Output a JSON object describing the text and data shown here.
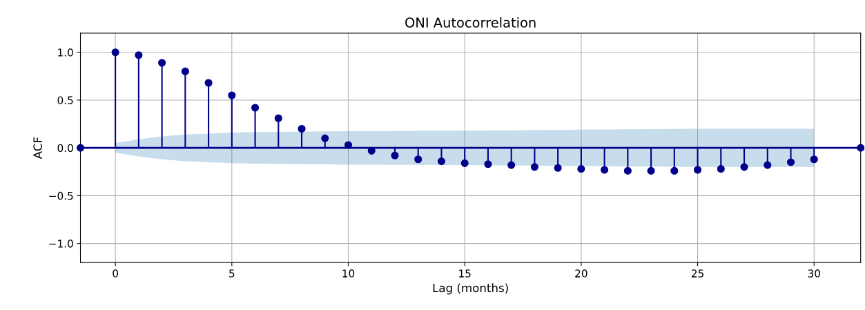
{
  "chart_data": {
    "type": "lollipop",
    "title": "ONI Autocorrelation",
    "xlabel": "Lag (months)",
    "ylabel": "ACF",
    "x": [
      0,
      1,
      2,
      3,
      4,
      5,
      6,
      7,
      8,
      9,
      10,
      11,
      12,
      13,
      14,
      15,
      16,
      17,
      18,
      19,
      20,
      21,
      22,
      23,
      24,
      25,
      26,
      27,
      28,
      29,
      30
    ],
    "series": [
      {
        "color": "#00008b",
        "marker": "circle",
        "values": [
          1.0,
          0.97,
          0.89,
          0.8,
          0.68,
          0.55,
          0.42,
          0.31,
          0.2,
          0.1,
          0.03,
          -0.03,
          -0.08,
          -0.12,
          -0.14,
          -0.16,
          -0.17,
          -0.18,
          -0.2,
          -0.21,
          -0.22,
          -0.23,
          -0.24,
          -0.24,
          -0.24,
          -0.23,
          -0.22,
          -0.2,
          -0.18,
          -0.15,
          -0.12
        ],
        "lower": [
          -0.05,
          -0.09,
          -0.12,
          -0.14,
          -0.15,
          -0.16,
          -0.165,
          -0.168,
          -0.17,
          -0.172,
          -0.175,
          -0.176,
          -0.177,
          -0.178,
          -0.179,
          -0.18,
          -0.182,
          -0.184,
          -0.186,
          -0.188,
          -0.19,
          -0.192,
          -0.194,
          -0.196,
          -0.198,
          -0.2,
          -0.2,
          -0.2,
          -0.2,
          -0.2,
          -0.2
        ],
        "upper": [
          0.05,
          0.09,
          0.12,
          0.14,
          0.15,
          0.16,
          0.165,
          0.168,
          0.17,
          0.172,
          0.175,
          0.176,
          0.177,
          0.178,
          0.179,
          0.18,
          0.182,
          0.184,
          0.186,
          0.188,
          0.19,
          0.192,
          0.194,
          0.196,
          0.198,
          0.2,
          0.2,
          0.2,
          0.2,
          0.2,
          0.2
        ]
      },
      {
        "type": "line",
        "color": "#00008b",
        "marker": "circle",
        "x": [
          -1.5,
          32
        ],
        "values": [
          0,
          0
        ]
      }
    ],
    "xlim": [
      -1.5,
      32
    ],
    "xticks": [
      0,
      5,
      10,
      15,
      20,
      25,
      30
    ],
    "ylim": [
      -1.2,
      1.2
    ],
    "yticks": [
      {
        "value": -1,
        "label": "−1.0"
      },
      {
        "value": -0.5,
        "label": "−0.5"
      },
      {
        "value": 0,
        "label": "0.0"
      },
      {
        "value": 0.5,
        "label": "0.5"
      },
      {
        "value": 1,
        "label": "1.0"
      }
    ],
    "grid": true
  }
}
